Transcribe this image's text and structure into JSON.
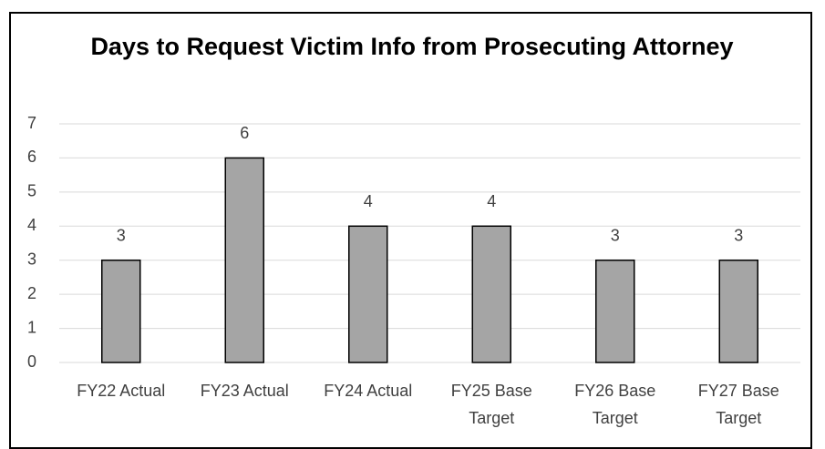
{
  "chart_data": {
    "type": "bar",
    "title": "Days to Request Victim Info from Prosecuting Attorney",
    "categories": [
      "FY22 Actual",
      "FY23 Actual",
      "FY24 Actual",
      "FY25 Base Target",
      "FY26 Base Target",
      "FY27 Base Target"
    ],
    "values": [
      3,
      6,
      4,
      4,
      3,
      3
    ],
    "color": "#a5a5a5",
    "ylim": [
      0,
      7
    ],
    "yticks": [
      0,
      1,
      2,
      3,
      4,
      5,
      6,
      7
    ],
    "grid": true
  }
}
